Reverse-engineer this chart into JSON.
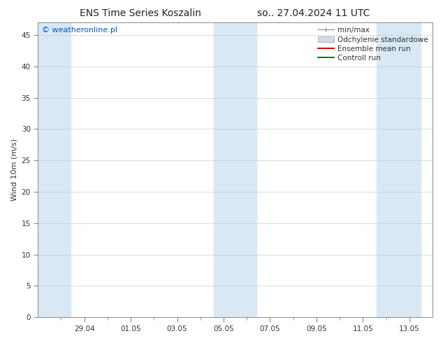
{
  "title_left": "ENS Time Series Koszalin",
  "title_right": "so.. 27.04.2024 11 UTC",
  "ylabel": "Wind 10m (m/s)",
  "watermark": "© weatheronline.pl",
  "watermark_color": "#0055cc",
  "ylim": [
    0,
    47
  ],
  "yticks": [
    0,
    5,
    10,
    15,
    20,
    25,
    30,
    35,
    40,
    45
  ],
  "background_color": "#ffffff",
  "plot_bg_color": "#ffffff",
  "shaded_regions": [
    {
      "x_start": 0.0,
      "x_end": 1.42
    },
    {
      "x_start": 7.58,
      "x_end": 9.42
    },
    {
      "x_start": 14.58,
      "x_end": 16.5
    }
  ],
  "shaded_color": "#d8e8f5",
  "x_tick_labels": [
    "29.04",
    "01.05",
    "03.05",
    "05.05",
    "07.05",
    "09.05",
    "11.05",
    "13.05"
  ],
  "x_tick_positions": [
    2,
    4,
    6,
    8,
    10,
    12,
    14,
    16
  ],
  "x_minor_positions": [
    1,
    3,
    5,
    7,
    9,
    11,
    13,
    15
  ],
  "xlim": [
    0,
    17
  ],
  "legend_labels": [
    "min/max",
    "Odchylenie standardowe",
    "Ensemble mean run",
    "Controll run"
  ],
  "title_fontsize": 10,
  "axis_label_fontsize": 8,
  "tick_fontsize": 7.5,
  "legend_fontsize": 7.5,
  "watermark_fontsize": 8,
  "grid_color": "#cccccc",
  "spine_color": "#888888",
  "tick_color": "#333333"
}
